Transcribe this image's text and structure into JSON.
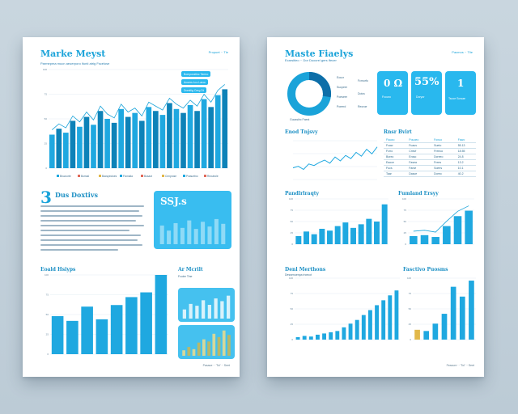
{
  "left_page": {
    "title": "Marke Meyst",
    "header_link": "Propuet ·· Tle",
    "subtitle": "Parmepma mucn aeuerporo ifunti atrig Fscelose",
    "footer": "Pasaue ·· 'Tol' ·· Seet",
    "pills": [
      "Bomporatinc Tarmo",
      "Acuers lu.s Laroc",
      "Dorstlig Cerg Dt"
    ],
    "legend": [
      "Bruzcorte",
      "Burrasl",
      "Bacspectoes",
      "Ficmalia",
      "Busaot",
      "Crmprose",
      "Prasuetno",
      "Recutrole"
    ],
    "section_numeral": "3",
    "section_title": "Dus Doxtivs",
    "kpi_card_text": "SSJ.s",
    "bottom_left_title": "Eoald Hsiyps",
    "bottom_right_title": "Ar Mcrilt",
    "bottom_right_sub": "Fcuter Tine"
  },
  "right_page": {
    "title": "Maste Fiaelys",
    "header_link": "Pacmos ·· Tlie",
    "subtitle": "Ecarsitieo ·· Dor Duocrel gers Ifecer",
    "footer": "Feacure ·· 'Tol' ·· Seet",
    "donut_labels": [
      "Eoucr",
      "Sucpeer",
      "Poeseer",
      "Poeerd"
    ],
    "donut_caption": "Gucasiirc Faest",
    "kpis": [
      {
        "value": "0 Ω",
        "label": "Fcouro"
      },
      {
        "value": "55%",
        "label": "Doryor"
      },
      {
        "value": "1",
        "label": "Tscoe Scrsae"
      }
    ],
    "kpi_side_labels": [
      "Fcmurfo",
      "Dotra",
      "Reoroe"
    ],
    "line_title": "Enod Tnjsvy",
    "table_title": "Rnsr Bvirt",
    "table_headers": [
      "Fiauxo",
      "Pouoeo",
      "Fonuo",
      "Fawo"
    ],
    "table_rows": [
      [
        "Fcaw",
        "Fuaus",
        "Sueto",
        "55.13"
      ],
      [
        "Fcrro",
        "Cmlvf",
        "Freeoo",
        "18.55"
      ],
      [
        "Boreo",
        "Eroso",
        "Dcreeo",
        "24.8"
      ],
      [
        "Eaoce",
        "Fasea",
        "Frees",
        "13.2"
      ],
      [
        "Fucs",
        "Farse",
        "Soees",
        "10.1"
      ],
      [
        "Taar",
        "Dasce",
        "Doreo",
        "40.2"
      ]
    ],
    "mid_left_title": "Pandlrlraqty",
    "mid_right_title": "Fumland Ersyy",
    "bottom_left_title": "Denl Merthons",
    "bottom_left_sub": "Dessenuenpa trcecot",
    "bottom_right_title": "Fasctivo Puosms"
  },
  "chart_data": [
    {
      "type": "bar",
      "values": [
        34,
        40,
        36,
        48,
        42,
        52,
        44,
        58,
        50,
        46,
        60,
        52,
        56,
        48,
        62,
        58,
        54,
        66,
        60,
        56,
        64,
        58,
        70,
        62,
        74,
        80
      ],
      "ylim": [
        0,
        100
      ]
    },
    {
      "type": "bar",
      "values": [
        55,
        40,
        62,
        48,
        70,
        45,
        66,
        52,
        74,
        60
      ],
      "ylim": [
        0,
        100
      ]
    },
    {
      "type": "bar",
      "values": [
        48,
        42,
        60,
        44,
        62,
        72,
        78,
        100
      ],
      "ylim": [
        0,
        100
      ]
    },
    {
      "type": "bar",
      "values": [
        20,
        32,
        28,
        40,
        30,
        44,
        38,
        50
      ],
      "ylim": [
        0,
        60
      ]
    },
    {
      "type": "bar",
      "values": [
        10,
        16,
        12,
        24,
        30,
        26,
        40,
        34,
        46,
        38
      ],
      "ylim": [
        0,
        50
      ]
    },
    {
      "type": "line",
      "values": [
        30,
        34,
        26,
        40,
        36,
        44,
        50,
        42,
        58,
        48,
        62,
        54,
        70,
        60,
        78,
        66,
        84
      ],
      "ylim": [
        0,
        100
      ]
    },
    {
      "type": "bar",
      "values": [
        18,
        28,
        22,
        34,
        30,
        40,
        48,
        36,
        44,
        56,
        50,
        88
      ],
      "ylim": [
        0,
        100
      ]
    },
    {
      "type": "bar",
      "values": [
        18,
        20,
        16,
        40,
        62,
        74
      ],
      "ylim": [
        0,
        100
      ]
    },
    {
      "type": "bar",
      "values": [
        4,
        6,
        5,
        8,
        10,
        12,
        14,
        20,
        26,
        32,
        40,
        48,
        56,
        64,
        72,
        80
      ],
      "ylim": [
        0,
        100
      ]
    },
    {
      "type": "bar",
      "values": [
        16,
        14,
        26,
        42,
        86,
        70,
        96
      ],
      "ylim": [
        0,
        100
      ]
    }
  ],
  "colors": {
    "primary": "#1aa3d9",
    "bar": "#1fa8e0",
    "bar_dark": "#0d82b8",
    "card": "#29b8ee",
    "olive": "#b7b86a"
  }
}
